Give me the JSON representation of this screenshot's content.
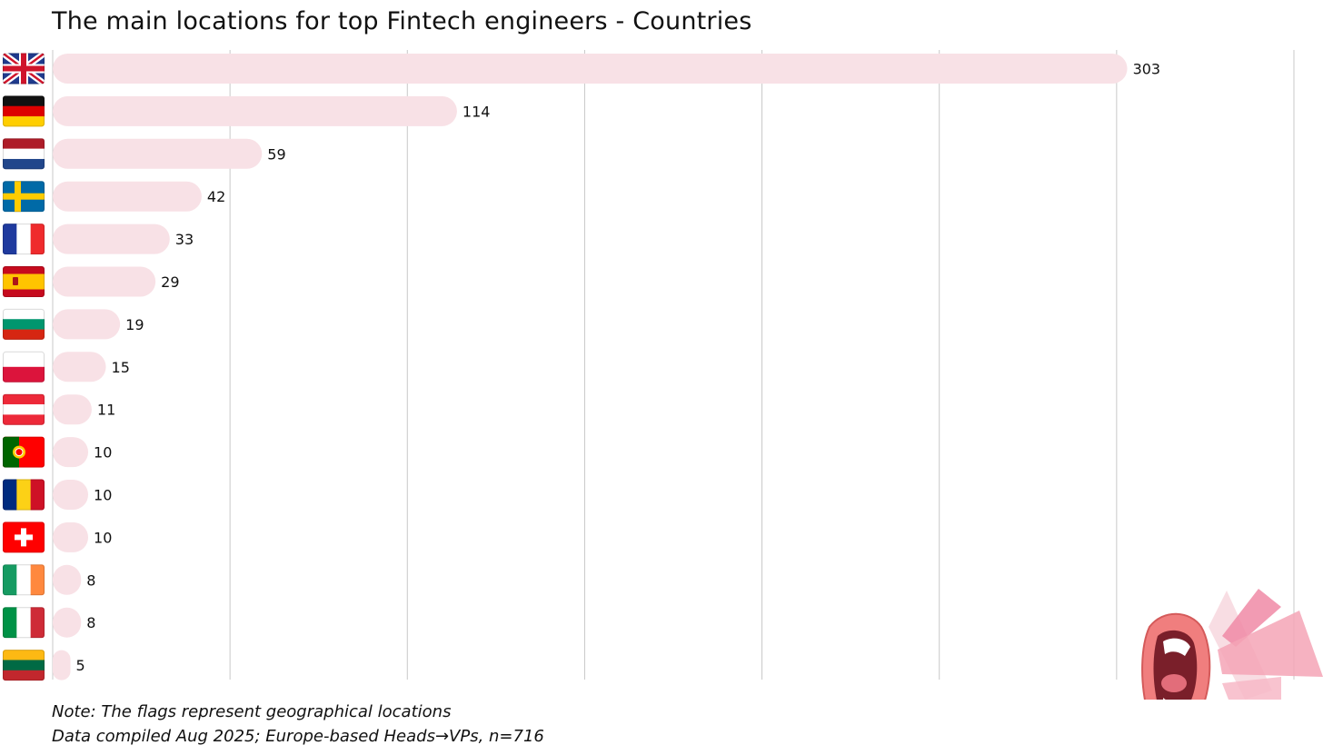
{
  "title": "The main locations for top Fintech engineers - Countries",
  "notes": {
    "line1": "Note: The flags represent geographical locations",
    "line2": "Data compiled Aug 2025; Europe-based Heads→VPs, n=716"
  },
  "colors": {
    "bar": "#f8e1e6",
    "grid": "#c8c8c8",
    "text": "#111111"
  },
  "chart_data": {
    "type": "bar",
    "orientation": "horizontal",
    "title": "The main locations for top Fintech engineers - Countries",
    "xlim": [
      0,
      350
    ],
    "grid": true,
    "categories": [
      "United Kingdom",
      "Germany",
      "Netherlands",
      "Sweden",
      "France",
      "Spain",
      "Bulgaria",
      "Poland",
      "Austria",
      "Portugal",
      "Romania",
      "Switzerland",
      "Ireland",
      "Italy",
      "Lithuania"
    ],
    "flags": [
      "gb",
      "de",
      "nl",
      "se",
      "fr",
      "es",
      "bg",
      "pl",
      "at",
      "pt",
      "ro",
      "ch",
      "ie",
      "it",
      "lt"
    ],
    "values": [
      303,
      114,
      59,
      42,
      33,
      29,
      19,
      15,
      11,
      10,
      10,
      10,
      8,
      8,
      5
    ],
    "value_labels": [
      "303",
      "114",
      "59",
      "42",
      "33",
      "29",
      "19",
      "15",
      "11",
      "10",
      "10",
      "10",
      "8",
      "8",
      "5"
    ]
  }
}
